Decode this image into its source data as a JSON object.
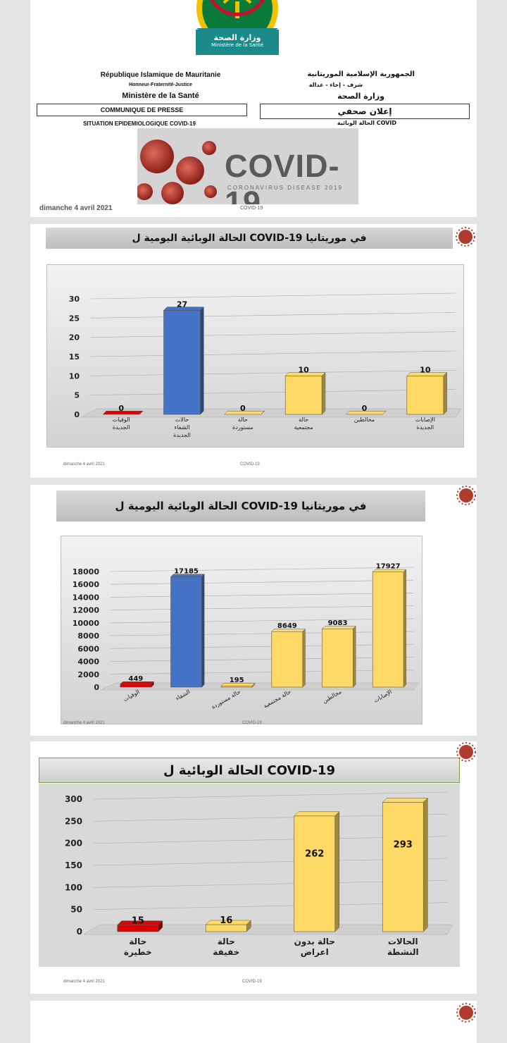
{
  "colors": {
    "blue": "#4472c4",
    "yellow": "#ffd966",
    "red": "#e00000",
    "gray": "#bfbfbf"
  },
  "slide1": {
    "emblem_label_ar": "وزارة الصحة",
    "emblem_label_fr": "Ministère de la Santé",
    "country_fr": "République Islamique de Mauritanie",
    "motto_fr": "Honneur-Fraternité-Justice",
    "ministry_fr": "Ministère de la Santé",
    "country_ar": "الجمهورية الإسلامية الموريتانية",
    "motto_ar": "شرف - إخاء - عدالة",
    "ministry_ar": "وزارة الصحة",
    "press_fr": "COMMUNIQUE DE PRESSE",
    "press_ar": "إعلان صحفي",
    "situation_fr": "SITUATION EPIDEMIOLOGIQUE COVID-19",
    "situation_ar": "الحالة الوبائية COVID",
    "banner_title": "COVID-19",
    "banner_subtitle": "CORONAVIRUS DISEASE 2019",
    "footer_date": "dimanche 4 avril 2021",
    "footer_mid": "COVID-19"
  },
  "slide2": {
    "title": "الحالة الوبائية اليومية ل COVID-19 في موريتانيا",
    "footer_date": "dimanche 4 avril 2021",
    "footer_mid": "COVID-19"
  },
  "slide3": {
    "title": "الحالة الوبائية اليومية ل COVID-19 في موريتانيا",
    "footer_date": "dimanche 4 avril 2021",
    "footer_mid": "COVID-19"
  },
  "slide4": {
    "title": "الحالة الوبائية ل COVID-19",
    "footer_date": "dimanche 4 avril 2021",
    "footer_mid": "COVID-19"
  },
  "chart_data": [
    {
      "type": "bar",
      "categories": [
        "الوفيات الجديدة",
        "حالات الشفاء الجديدة",
        "حالة مستوردة",
        "حالة مجتمعية",
        "مخالطين",
        "الإصابات الجديدة"
      ],
      "values": [
        0,
        27,
        0,
        10,
        0,
        10
      ],
      "colors": [
        "#e00000",
        "#4472c4",
        "#ffd966",
        "#ffd966",
        "#ffd966",
        "#ffd966"
      ],
      "y_ticks": [
        "0",
        "5",
        "10",
        "15",
        "20",
        "25",
        "30"
      ],
      "ylim": [
        0,
        30
      ]
    },
    {
      "type": "bar",
      "categories": [
        "الوفيات",
        "الشفاء",
        "حالة مستوردة",
        "حالة مجتمعية",
        "مخالطين",
        "الإصابات"
      ],
      "values": [
        449,
        17185,
        195,
        8649,
        9083,
        17927
      ],
      "colors": [
        "#e00000",
        "#4472c4",
        "#ffd966",
        "#ffd966",
        "#ffd966",
        "#ffd966"
      ],
      "y_ticks": [
        "0",
        "2000",
        "4000",
        "6000",
        "8000",
        "10000",
        "12000",
        "14000",
        "16000",
        "18000"
      ],
      "ylim": [
        0,
        18000
      ]
    },
    {
      "type": "bar",
      "categories": [
        "حالة خطيرة",
        "حالة خفيفة",
        "حالة بدون اعراض",
        "الحالات النشطة"
      ],
      "values": [
        15,
        16,
        262,
        293
      ],
      "colors": [
        "#e00000",
        "#ffd966",
        "#ffd966",
        "#ffd966"
      ],
      "y_ticks": [
        "0",
        "50",
        "100",
        "150",
        "200",
        "250",
        "300"
      ],
      "ylim": [
        0,
        300
      ]
    }
  ]
}
